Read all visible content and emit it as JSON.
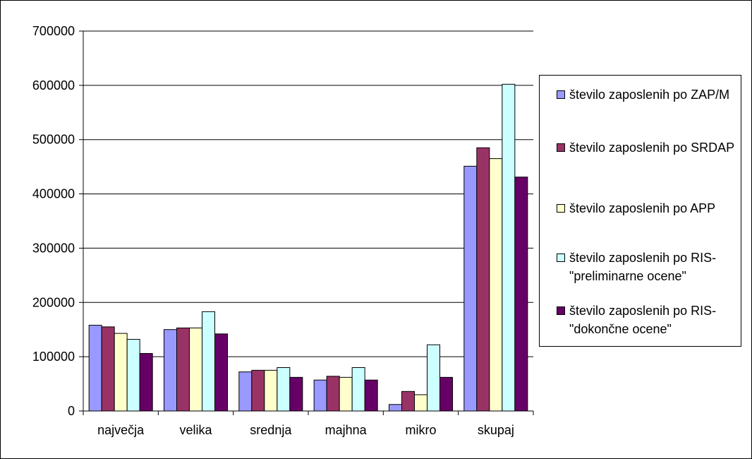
{
  "chart_data": {
    "type": "bar",
    "title": "",
    "xlabel": "",
    "ylabel": "",
    "categories": [
      "največja",
      "velika",
      "srednja",
      "majhna",
      "mikro",
      "skupaj"
    ],
    "ylim": [
      0,
      700000
    ],
    "yticks": [
      0,
      100000,
      200000,
      300000,
      400000,
      500000,
      600000,
      700000
    ],
    "grid": true,
    "legend_position": "right",
    "series": [
      {
        "name": "število zaposlenih po ZAP/M",
        "color": "#9999ff",
        "values": [
          158000,
          150000,
          72000,
          57000,
          12000,
          451000
        ]
      },
      {
        "name": "število zaposlenih po SRDAP",
        "color": "#993366",
        "values": [
          155000,
          153000,
          75000,
          64000,
          36000,
          485000
        ]
      },
      {
        "name": "število zaposlenih po APP",
        "color": "#ffffcc",
        "values": [
          143000,
          153000,
          75000,
          62000,
          30000,
          465000
        ]
      },
      {
        "name": "število zaposlenih po RIS-\"preliminarne ocene\"",
        "color": "#ccffff",
        "values": [
          132000,
          183000,
          80000,
          80000,
          122000,
          602000
        ]
      },
      {
        "name": "število zaposlenih po RIS-\"dokončne ocene\"",
        "color": "#660066",
        "values": [
          106000,
          142000,
          62000,
          57000,
          62000,
          431000
        ]
      }
    ]
  }
}
